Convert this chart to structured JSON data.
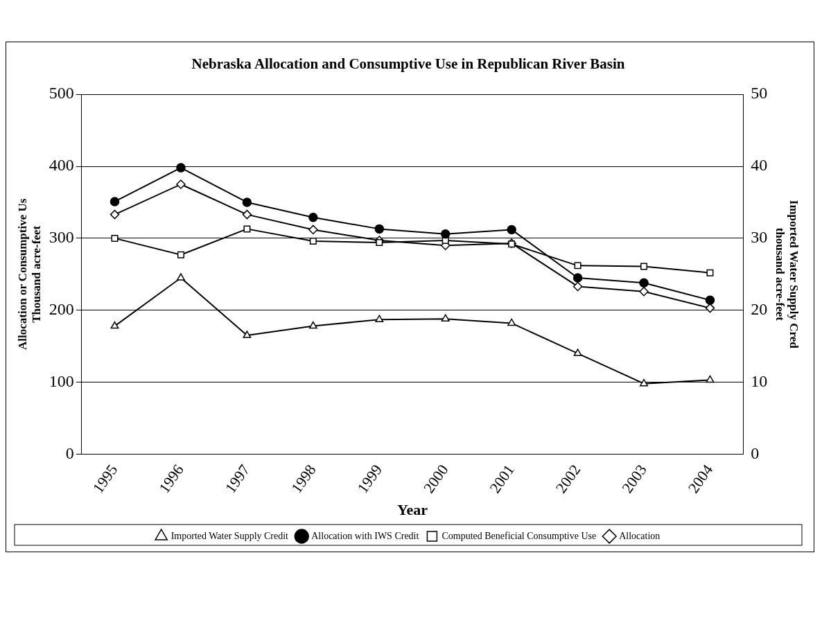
{
  "chart_data": {
    "type": "line",
    "title": "Nebraska Allocation and Consumptive Use in Republican River Basin",
    "xlabel": "Year",
    "ylabel": "Allocation or Consumptive Us\nThousand acre-feet",
    "y2label": "Imported Water Supply Cred\nthousand acre-feet",
    "categories": [
      "1995",
      "1996",
      "1997",
      "1998",
      "1999",
      "2000",
      "2001",
      "2002",
      "2003",
      "2004"
    ],
    "series": [
      {
        "name": "Allocation",
        "color": "#000000",
        "marker": "diamond",
        "values": [
          333,
          375,
          333,
          312,
          297,
          290,
          293,
          233,
          226,
          203
        ]
      },
      {
        "name": "Computed Beneficial Consumptive Use",
        "color": "#000000",
        "marker": "square",
        "values": [
          300,
          277,
          313,
          296,
          294,
          297,
          292,
          262,
          261,
          252
        ]
      },
      {
        "name": "Allocation with IWS Credit",
        "color": "#000000",
        "marker": "circle",
        "values": [
          351,
          398,
          350,
          329,
          313,
          306,
          312,
          245,
          238,
          214
        ]
      },
      {
        "name": "Imported Water Supply Credit",
        "color": "#000000",
        "marker": "triangle",
        "axis": "y2",
        "values": [
          17.8,
          24.5,
          16.5,
          17.8,
          18.7,
          18.8,
          18.2,
          14.0,
          9.8,
          10.3
        ]
      }
    ],
    "ylim": [
      0,
      500
    ],
    "yticks": [
      0,
      100,
      200,
      300,
      400,
      500
    ],
    "y2lim": [
      0,
      50
    ],
    "y2ticks": [
      0,
      10,
      20,
      30,
      40,
      50
    ],
    "grid": "y",
    "legend": "bottom",
    "line_style": "solid"
  }
}
